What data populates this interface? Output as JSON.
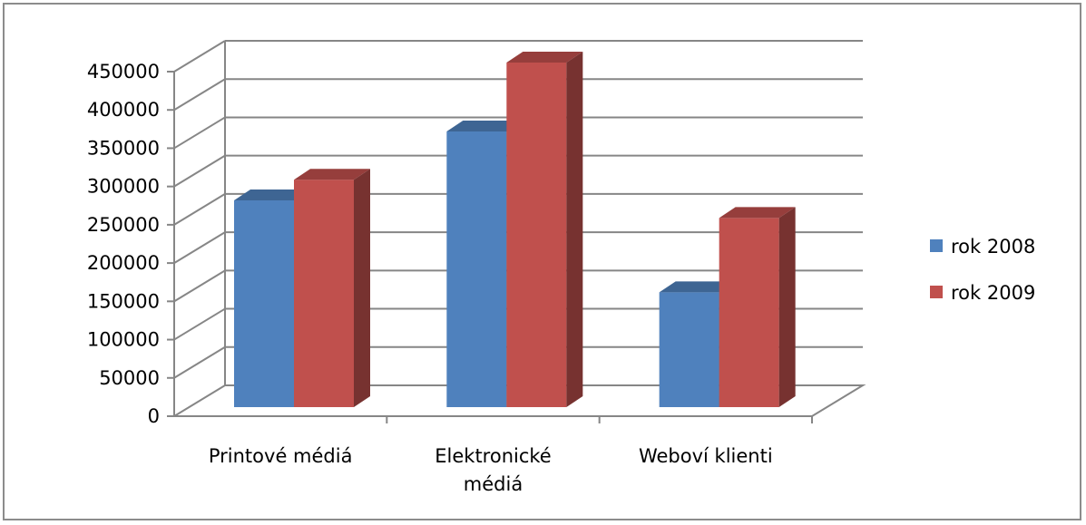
{
  "chart_data": {
    "type": "bar",
    "style": "3d-clustered-column",
    "categories": [
      [
        "Printové médiá"
      ],
      [
        "Elektronické",
        "médiá"
      ],
      [
        "Weboví klienti"
      ]
    ],
    "series": [
      {
        "name": "rok 2008",
        "color": "#4f81bd",
        "values": [
          270000,
          360000,
          150000
        ]
      },
      {
        "name": "rok 2009",
        "color": "#c0504d",
        "values": [
          297000,
          450000,
          247000
        ]
      }
    ],
    "yticks": [
      "0",
      "50000",
      "100000",
      "150000",
      "200000",
      "250000",
      "300000",
      "350000",
      "400000",
      "450000"
    ],
    "ylim": [
      0,
      450000
    ],
    "grid": true,
    "legend_position": "right"
  }
}
